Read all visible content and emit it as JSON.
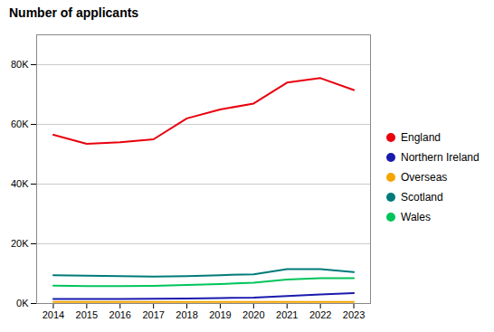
{
  "chart_data": {
    "type": "line",
    "title": "Number of applicants",
    "x": [
      2014,
      2015,
      2016,
      2017,
      2018,
      2019,
      2020,
      2021,
      2022,
      2023
    ],
    "series": [
      {
        "name": "England",
        "color": "#e8000d",
        "values": [
          56500,
          53500,
          54000,
          55000,
          62000,
          65000,
          67000,
          74000,
          75500,
          71500
        ]
      },
      {
        "name": "Northern Ireland",
        "color": "#1a1aad",
        "values": [
          1500,
          1500,
          1500,
          1600,
          1700,
          1800,
          2000,
          2500,
          3000,
          3500
        ]
      },
      {
        "name": "Overseas",
        "color": "#f5a500",
        "values": [
          500,
          500,
          500,
          500,
          500,
          500,
          500,
          500,
          500,
          500
        ]
      },
      {
        "name": "Scotland",
        "color": "#007a7a",
        "values": [
          9500,
          9300,
          9200,
          9000,
          9200,
          9500,
          9800,
          11500,
          11500,
          10500
        ]
      },
      {
        "name": "Wales",
        "color": "#00c45a",
        "values": [
          6000,
          5800,
          5800,
          5900,
          6200,
          6500,
          7000,
          8000,
          8500,
          8500
        ]
      }
    ],
    "xlim": [
      2013.5,
      2023.5
    ],
    "xticks": [
      2014,
      2015,
      2016,
      2017,
      2018,
      2019,
      2020,
      2021,
      2022,
      2023
    ],
    "ylim": [
      0,
      90000
    ],
    "yticks": [
      {
        "value": 0,
        "label": "0K"
      },
      {
        "value": 20000,
        "label": "20K"
      },
      {
        "value": 40000,
        "label": "40K"
      },
      {
        "value": 60000,
        "label": "60K"
      },
      {
        "value": 80000,
        "label": "80K"
      }
    ],
    "grid": true,
    "legend": "right"
  }
}
